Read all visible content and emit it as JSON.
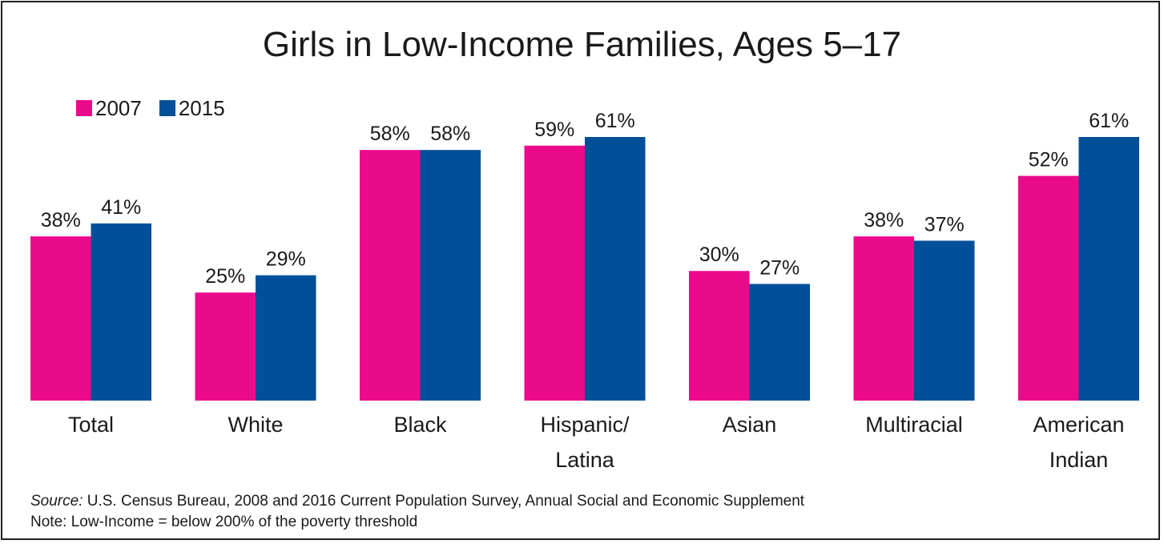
{
  "chart_data": {
    "type": "bar",
    "title": "Girls in Low-Income Families, Ages 5–17",
    "categories": [
      [
        "Total"
      ],
      [
        "White"
      ],
      [
        "Black"
      ],
      [
        "Hispanic/",
        "Latina"
      ],
      [
        "Asian"
      ],
      [
        "Multiracial"
      ],
      [
        "American",
        "Indian"
      ]
    ],
    "series": [
      {
        "name": "2007",
        "color": "#EC0A8C",
        "values": [
          38,
          25,
          58,
          59,
          30,
          38,
          52
        ],
        "labels": [
          "38%",
          "25%",
          "58%",
          "59%",
          "30%",
          "38%",
          "52%"
        ]
      },
      {
        "name": "2015",
        "color": "#004F98",
        "values": [
          41,
          29,
          58,
          61,
          27,
          37,
          61
        ],
        "labels": [
          "41%",
          "29%",
          "58%",
          "61%",
          "27%",
          "37%",
          "61%"
        ]
      }
    ],
    "ylim": [
      0,
      61
    ],
    "xlabel": "",
    "ylabel": "",
    "grid": false,
    "legend_position": "top-left"
  },
  "footer": {
    "source_prefix": "Source:",
    "source_text": " U.S. Census Bureau, 2008 and 2016 Current Population Survey, Annual Social and Economic Supplement",
    "note": "Note: Low-Income = below 200% of the poverty threshold"
  }
}
